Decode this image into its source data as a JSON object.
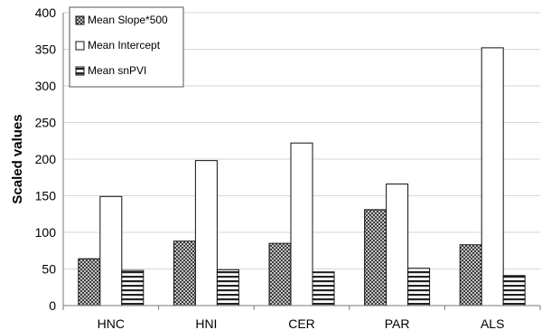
{
  "chart_data": {
    "type": "bar",
    "title": "",
    "xlabel": "",
    "ylabel": "Scaled values",
    "ylim": [
      0,
      400
    ],
    "yticks": [
      0,
      50,
      100,
      150,
      200,
      250,
      300,
      350,
      400
    ],
    "grid": true,
    "legend_position": "top-left",
    "categories": [
      "HNC",
      "HNI",
      "CER",
      "PAR",
      "ALS"
    ],
    "series": [
      {
        "name": "Mean Slope*500",
        "pattern": "crosshatch",
        "values": [
          64,
          88,
          85,
          131,
          83
        ]
      },
      {
        "name": "Mean Intercept",
        "pattern": "white",
        "values": [
          149,
          198,
          222,
          166,
          352
        ]
      },
      {
        "name": "Mean snPVI",
        "pattern": "horizontal-stripes",
        "values": [
          48,
          49,
          46,
          51,
          41
        ]
      }
    ]
  }
}
